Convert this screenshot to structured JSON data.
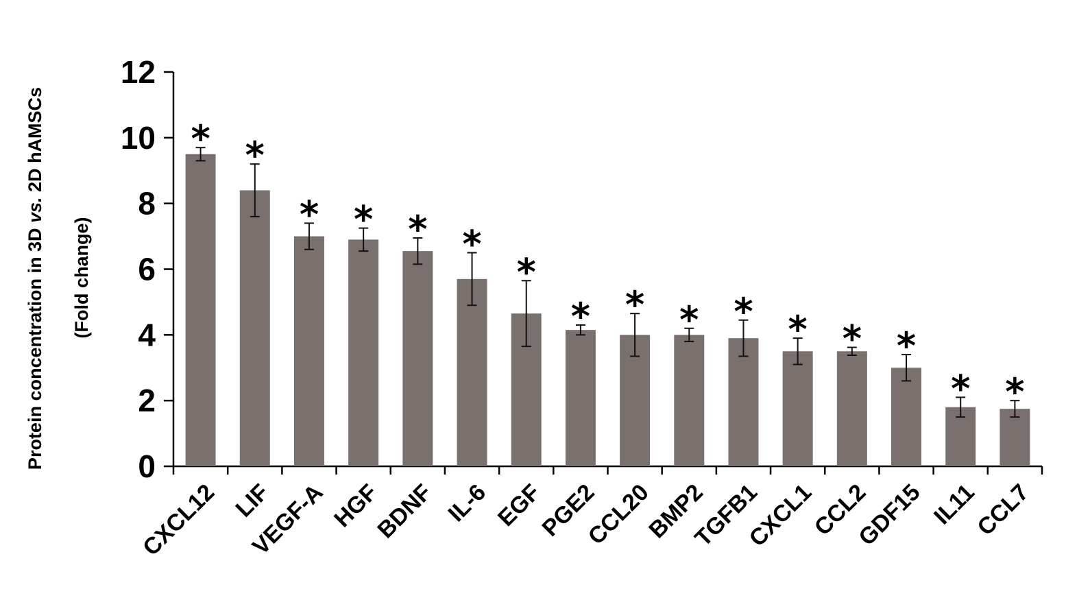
{
  "chart_data": {
    "type": "bar",
    "title": "",
    "ylabel_line1_prefix": "Protein concentration in 3D ",
    "ylabel_line1_italic": "vs.",
    "ylabel_line1_suffix": " 2D hAMSCs",
    "ylabel_line2": "(Fold change)",
    "xlabel": "",
    "ylim": [
      0,
      12
    ],
    "yticks": [
      "0",
      "2",
      "4",
      "6",
      "8",
      "10",
      "12"
    ],
    "categories": [
      "CXCL12",
      "LIF",
      "VEGF-A",
      "HGF",
      "BDNF",
      "IL-6",
      "EGF",
      "PGE2",
      "CCL20",
      "BMP2",
      "TGFB1",
      "CXCL1",
      "CCL2",
      "GDF15",
      "IL11",
      "CCL7"
    ],
    "values": [
      9.5,
      8.4,
      7.0,
      6.9,
      6.55,
      5.7,
      4.65,
      4.15,
      4.0,
      4.0,
      3.9,
      3.5,
      3.5,
      3.0,
      1.8,
      1.75
    ],
    "errors": [
      0.2,
      0.8,
      0.4,
      0.35,
      0.4,
      0.8,
      1.0,
      0.15,
      0.65,
      0.2,
      0.55,
      0.4,
      0.12,
      0.4,
      0.3,
      0.25
    ],
    "significance": [
      "*",
      "*",
      "*",
      "*",
      "*",
      "*",
      "*",
      "*",
      "*",
      "*",
      "*",
      "*",
      "*",
      "*",
      "*",
      "*"
    ],
    "bar_color": "#7a706e",
    "grid": false,
    "legend": "none"
  }
}
